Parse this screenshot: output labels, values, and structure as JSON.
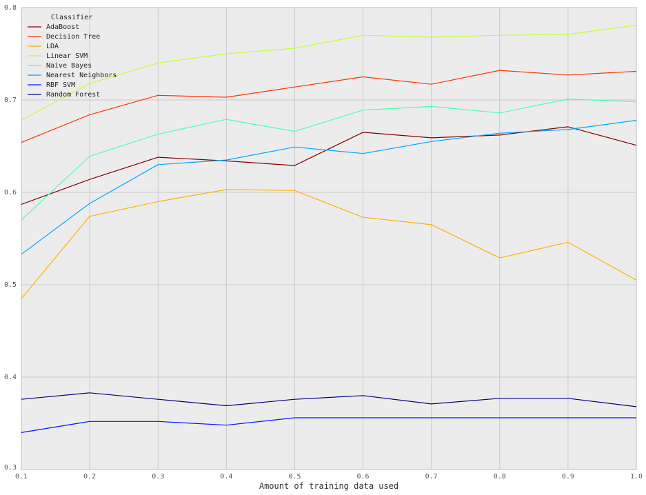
{
  "chart_data": {
    "type": "line",
    "xlabel": "Amount of training data used",
    "ylabel": "",
    "xlim": [
      0.1,
      1.0
    ],
    "ylim": [
      0.3,
      0.8
    ],
    "x": [
      0.1,
      0.2,
      0.3,
      0.4,
      0.5,
      0.6,
      0.7,
      0.8,
      0.9,
      1.0
    ],
    "x_ticks": [
      "0.1",
      "0.2",
      "0.3",
      "0.4",
      "0.5",
      "0.6",
      "0.7",
      "0.8",
      "0.9",
      "1.0"
    ],
    "y_ticks": [
      "0.3",
      "0.4",
      "0.5",
      "0.6",
      "0.7",
      "0.8"
    ],
    "grid": true,
    "legend": {
      "title": "Classifier",
      "placement": "top-left"
    },
    "series": [
      {
        "name": "AdaBoost",
        "color": "#800000",
        "values": [
          0.587,
          0.614,
          0.638,
          0.634,
          0.629,
          0.665,
          0.659,
          0.662,
          0.671,
          0.651
        ]
      },
      {
        "name": "Decision Tree",
        "color": "#ff3000",
        "values": [
          0.654,
          0.684,
          0.705,
          0.703,
          0.714,
          0.725,
          0.717,
          0.732,
          0.727,
          0.731
        ]
      },
      {
        "name": "LDA",
        "color": "#ffb000",
        "values": [
          0.485,
          0.574,
          0.59,
          0.603,
          0.602,
          0.573,
          0.565,
          0.529,
          0.546,
          0.505
        ]
      },
      {
        "name": "Linear SVM",
        "color": "#bfff3a",
        "values": [
          0.678,
          0.718,
          0.74,
          0.75,
          0.756,
          0.77,
          0.768,
          0.77,
          0.771,
          0.781
        ]
      },
      {
        "name": "Naive Bayes",
        "color": "#49ffad",
        "values": [
          0.57,
          0.639,
          0.663,
          0.679,
          0.666,
          0.689,
          0.693,
          0.686,
          0.701,
          0.698
        ]
      },
      {
        "name": "Nearest Neighbors",
        "color": "#00a4ff",
        "values": [
          0.533,
          0.588,
          0.63,
          0.635,
          0.649,
          0.642,
          0.655,
          0.664,
          0.668,
          0.678
        ]
      },
      {
        "name": "RBF SVM",
        "color": "#0014ff",
        "values": [
          0.34,
          0.352,
          0.352,
          0.348,
          0.356,
          0.356,
          0.356,
          0.356,
          0.356,
          0.356
        ]
      },
      {
        "name": "Random Forest",
        "color": "#00007f",
        "values": [
          0.376,
          0.383,
          0.376,
          0.369,
          0.376,
          0.38,
          0.371,
          0.377,
          0.377,
          0.368
        ]
      }
    ]
  }
}
